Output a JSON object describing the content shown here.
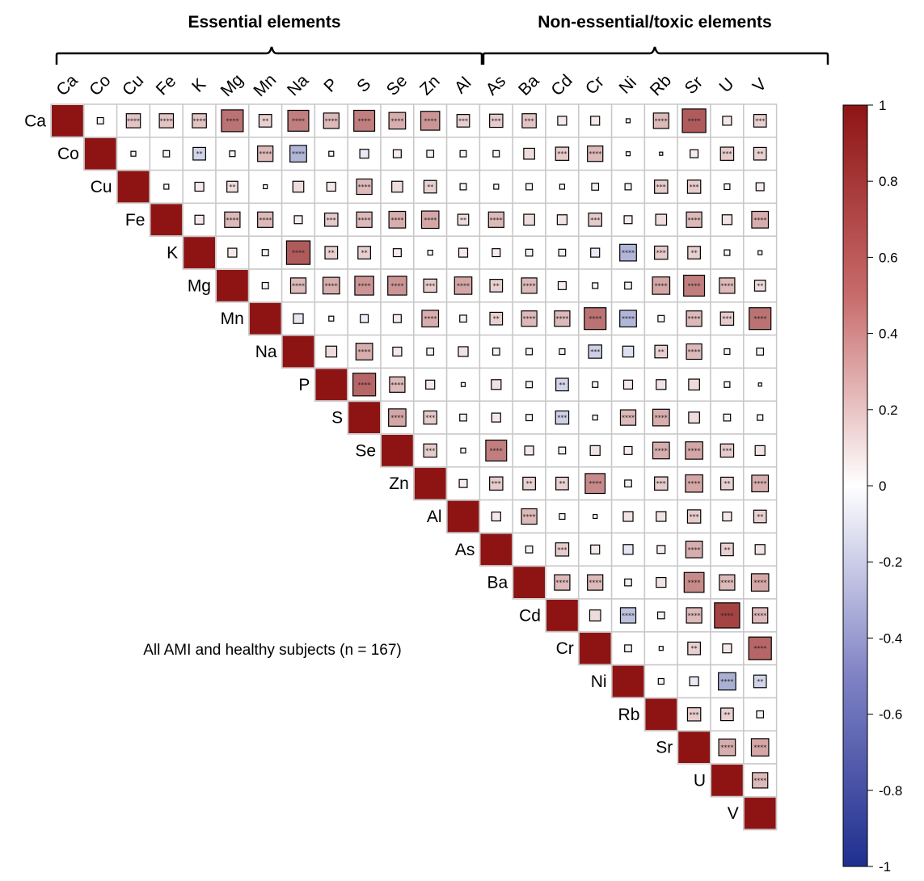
{
  "chart_data": {
    "type": "heatmap",
    "layout": "upper-triangle correlation matrix",
    "groups": [
      {
        "label": "Essential elements",
        "variables": [
          "Ca",
          "Co",
          "Cu",
          "Fe",
          "K",
          "Mg",
          "Mn",
          "Na",
          "P",
          "S",
          "Se",
          "Zn"
        ]
      },
      {
        "label": "Non-essential/toxic elements",
        "variables": [
          "Al",
          "As",
          "Ba",
          "Cd",
          "Cr",
          "Ni",
          "Rb",
          "Sr",
          "U",
          "V"
        ]
      }
    ],
    "variables": [
      "Ca",
      "Co",
      "Cu",
      "Fe",
      "K",
      "Mg",
      "Mn",
      "Na",
      "P",
      "S",
      "Se",
      "Zn",
      "Al",
      "As",
      "Ba",
      "Cd",
      "Cr",
      "Ni",
      "Rb",
      "Sr",
      "U",
      "V"
    ],
    "annotation": "All AMI and healthy subjects (n = 167)",
    "colorbar": {
      "range": [
        -1,
        1
      ],
      "ticks": [
        "1",
        "0.8",
        "0.6",
        "0.4",
        "0.2",
        "0",
        "-0.2",
        "-0.4",
        "-0.6",
        "-0.8",
        "-1"
      ],
      "colors": {
        "negative": "#1f2f8f",
        "zero": "#ffffff",
        "positive": "#8e1414"
      }
    },
    "cells": [
      [
        "Ca",
        "Co",
        0.05,
        ""
      ],
      [
        "Ca",
        "Cu",
        0.25,
        "****"
      ],
      [
        "Ca",
        "Fe",
        0.25,
        "****"
      ],
      [
        "Ca",
        "K",
        0.25,
        "****"
      ],
      [
        "Ca",
        "Mg",
        0.6,
        "****"
      ],
      [
        "Ca",
        "Mn",
        0.2,
        "**"
      ],
      [
        "Ca",
        "Na",
        0.55,
        "****"
      ],
      [
        "Ca",
        "P",
        0.3,
        "****"
      ],
      [
        "Ca",
        "S",
        0.55,
        "****"
      ],
      [
        "Ca",
        "Se",
        0.35,
        "****"
      ],
      [
        "Ca",
        "Zn",
        0.45,
        "****"
      ],
      [
        "Ca",
        "Al",
        0.2,
        "***"
      ],
      [
        "Ca",
        "As",
        0.22,
        "***"
      ],
      [
        "Ca",
        "Ba",
        0.25,
        "***"
      ],
      [
        "Ca",
        "Cd",
        0.1,
        ""
      ],
      [
        "Ca",
        "Cr",
        0.1,
        ""
      ],
      [
        "Ca",
        "Ni",
        0.02,
        ""
      ],
      [
        "Ca",
        "Rb",
        0.3,
        "****"
      ],
      [
        "Ca",
        "Sr",
        0.7,
        "****"
      ],
      [
        "Ca",
        "U",
        0.1,
        ""
      ],
      [
        "Ca",
        "V",
        0.2,
        "***"
      ],
      [
        "Co",
        "Cu",
        0.03,
        ""
      ],
      [
        "Co",
        "Fe",
        0.05,
        ""
      ],
      [
        "Co",
        "K",
        -0.2,
        "**"
      ],
      [
        "Co",
        "Mg",
        0.04,
        ""
      ],
      [
        "Co",
        "Mn",
        0.3,
        "****"
      ],
      [
        "Co",
        "Na",
        -0.35,
        "****"
      ],
      [
        "Co",
        "P",
        0.03,
        ""
      ],
      [
        "Co",
        "S",
        -0.1,
        ""
      ],
      [
        "Co",
        "Se",
        0.08,
        ""
      ],
      [
        "Co",
        "Zn",
        0.06,
        ""
      ],
      [
        "Co",
        "Al",
        0.05,
        ""
      ],
      [
        "Co",
        "As",
        0.05,
        ""
      ],
      [
        "Co",
        "Ba",
        0.15,
        ""
      ],
      [
        "Co",
        "Cd",
        0.22,
        "***"
      ],
      [
        "Co",
        "Cr",
        0.3,
        "****"
      ],
      [
        "Co",
        "Ni",
        0.02,
        ""
      ],
      [
        "Co",
        "Rb",
        0.01,
        ""
      ],
      [
        "Co",
        "Sr",
        0.08,
        ""
      ],
      [
        "Co",
        "U",
        0.22,
        "***"
      ],
      [
        "Co",
        "V",
        0.2,
        "**"
      ],
      [
        "Cu",
        "Fe",
        0.03,
        ""
      ],
      [
        "Cu",
        "K",
        0.1,
        ""
      ],
      [
        "Cu",
        "Mg",
        0.15,
        "**"
      ],
      [
        "Cu",
        "Mn",
        0.02,
        ""
      ],
      [
        "Cu",
        "Na",
        0.15,
        ""
      ],
      [
        "Cu",
        "P",
        0.1,
        ""
      ],
      [
        "Cu",
        "S",
        0.3,
        "****"
      ],
      [
        "Cu",
        "Se",
        0.15,
        ""
      ],
      [
        "Cu",
        "Zn",
        0.2,
        "**"
      ],
      [
        "Cu",
        "Al",
        0.05,
        ""
      ],
      [
        "Cu",
        "As",
        0.03,
        ""
      ],
      [
        "Cu",
        "Ba",
        0.05,
        ""
      ],
      [
        "Cu",
        "Cd",
        0.03,
        ""
      ],
      [
        "Cu",
        "Cr",
        0.06,
        ""
      ],
      [
        "Cu",
        "Ni",
        0.05,
        ""
      ],
      [
        "Cu",
        "Rb",
        0.22,
        "***"
      ],
      [
        "Cu",
        "Sr",
        0.22,
        "***"
      ],
      [
        "Cu",
        "U",
        0.04,
        ""
      ],
      [
        "Cu",
        "V",
        0.08,
        ""
      ],
      [
        "Fe",
        "K",
        0.1,
        ""
      ],
      [
        "Fe",
        "Mg",
        0.3,
        "****"
      ],
      [
        "Fe",
        "Mn",
        0.3,
        "****"
      ],
      [
        "Fe",
        "Na",
        0.08,
        ""
      ],
      [
        "Fe",
        "P",
        0.22,
        "***"
      ],
      [
        "Fe",
        "S",
        0.3,
        "****"
      ],
      [
        "Fe",
        "Se",
        0.35,
        "****"
      ],
      [
        "Fe",
        "Zn",
        0.38,
        "****"
      ],
      [
        "Fe",
        "Al",
        0.15,
        "**"
      ],
      [
        "Fe",
        "As",
        0.3,
        "****"
      ],
      [
        "Fe",
        "Ba",
        0.15,
        ""
      ],
      [
        "Fe",
        "Cd",
        0.12,
        ""
      ],
      [
        "Fe",
        "Cr",
        0.22,
        "***"
      ],
      [
        "Fe",
        "Ni",
        0.08,
        ""
      ],
      [
        "Fe",
        "Rb",
        0.15,
        ""
      ],
      [
        "Fe",
        "Sr",
        0.3,
        "****"
      ],
      [
        "Fe",
        "U",
        0.12,
        ""
      ],
      [
        "Fe",
        "V",
        0.35,
        "****"
      ],
      [
        "K",
        "Mg",
        0.1,
        ""
      ],
      [
        "K",
        "Mn",
        0.05,
        ""
      ],
      [
        "K",
        "Na",
        0.7,
        "****"
      ],
      [
        "K",
        "P",
        0.2,
        "**"
      ],
      [
        "K",
        "S",
        0.2,
        "**"
      ],
      [
        "K",
        "Se",
        0.08,
        ""
      ],
      [
        "K",
        "Zn",
        0.03,
        ""
      ],
      [
        "K",
        "Al",
        0.1,
        ""
      ],
      [
        "K",
        "As",
        0.08,
        ""
      ],
      [
        "K",
        "Ba",
        0.06,
        ""
      ],
      [
        "K",
        "Cd",
        0.06,
        ""
      ],
      [
        "K",
        "Cr",
        -0.1,
        ""
      ],
      [
        "K",
        "Ni",
        -0.35,
        "****"
      ],
      [
        "K",
        "Rb",
        0.22,
        "***"
      ],
      [
        "K",
        "Sr",
        0.2,
        "**"
      ],
      [
        "K",
        "U",
        0.04,
        ""
      ],
      [
        "K",
        "V",
        0.02,
        ""
      ],
      [
        "Mg",
        "Mn",
        0.05,
        ""
      ],
      [
        "Mg",
        "Na",
        0.3,
        "****"
      ],
      [
        "Mg",
        "P",
        0.35,
        "****"
      ],
      [
        "Mg",
        "S",
        0.45,
        "****"
      ],
      [
        "Mg",
        "Se",
        0.45,
        "****"
      ],
      [
        "Mg",
        "Zn",
        0.22,
        "***"
      ],
      [
        "Mg",
        "Al",
        0.38,
        "****"
      ],
      [
        "Mg",
        "As",
        0.2,
        "**"
      ],
      [
        "Mg",
        "Ba",
        0.3,
        "****"
      ],
      [
        "Mg",
        "Cd",
        0.08,
        ""
      ],
      [
        "Mg",
        "Cr",
        0.04,
        ""
      ],
      [
        "Mg",
        "Ni",
        0.06,
        ""
      ],
      [
        "Mg",
        "Rb",
        0.38,
        "****"
      ],
      [
        "Mg",
        "Sr",
        0.55,
        "****"
      ],
      [
        "Mg",
        "U",
        0.3,
        "****"
      ],
      [
        "Mg",
        "V",
        0.15,
        "**"
      ],
      [
        "Mn",
        "Na",
        -0.12,
        ""
      ],
      [
        "Mn",
        "P",
        0.03,
        ""
      ],
      [
        "Mn",
        "S",
        -0.08,
        ""
      ],
      [
        "Mn",
        "Se",
        0.08,
        ""
      ],
      [
        "Mn",
        "Zn",
        0.35,
        "****"
      ],
      [
        "Mn",
        "Al",
        0.06,
        ""
      ],
      [
        "Mn",
        "As",
        0.2,
        "**"
      ],
      [
        "Mn",
        "Ba",
        0.3,
        "****"
      ],
      [
        "Mn",
        "Cd",
        0.3,
        "****"
      ],
      [
        "Mn",
        "Cr",
        0.6,
        "****"
      ],
      [
        "Mn",
        "Ni",
        -0.35,
        "****"
      ],
      [
        "Mn",
        "Rb",
        0.05,
        ""
      ],
      [
        "Mn",
        "Sr",
        0.3,
        "****"
      ],
      [
        "Mn",
        "U",
        0.22,
        "***"
      ],
      [
        "Mn",
        "V",
        0.6,
        "****"
      ],
      [
        "Na",
        "P",
        0.15,
        ""
      ],
      [
        "Na",
        "S",
        0.35,
        "****"
      ],
      [
        "Na",
        "Se",
        0.1,
        ""
      ],
      [
        "Na",
        "Zn",
        0.06,
        ""
      ],
      [
        "Na",
        "Al",
        0.12,
        ""
      ],
      [
        "Na",
        "As",
        0.06,
        ""
      ],
      [
        "Na",
        "Ba",
        0.05,
        ""
      ],
      [
        "Na",
        "Cd",
        0.04,
        ""
      ],
      [
        "Na",
        "Cr",
        -0.22,
        "***"
      ],
      [
        "Na",
        "Ni",
        -0.15,
        ""
      ],
      [
        "Na",
        "Rb",
        0.2,
        "**"
      ],
      [
        "Na",
        "Sr",
        0.3,
        "****"
      ],
      [
        "Na",
        "U",
        0.04,
        ""
      ],
      [
        "Na",
        "V",
        0.06,
        ""
      ],
      [
        "P",
        "S",
        0.65,
        "****"
      ],
      [
        "P",
        "Se",
        0.3,
        "****"
      ],
      [
        "P",
        "Zn",
        0.1,
        ""
      ],
      [
        "P",
        "Al",
        0.02,
        ""
      ],
      [
        "P",
        "As",
        0.12,
        ""
      ],
      [
        "P",
        "Ba",
        0.05,
        ""
      ],
      [
        "P",
        "Cd",
        -0.2,
        "**"
      ],
      [
        "P",
        "Cr",
        0.04,
        ""
      ],
      [
        "P",
        "Ni",
        0.1,
        ""
      ],
      [
        "P",
        "Rb",
        0.12,
        ""
      ],
      [
        "P",
        "Sr",
        0.15,
        ""
      ],
      [
        "P",
        "U",
        0.04,
        ""
      ],
      [
        "P",
        "V",
        0.01,
        ""
      ],
      [
        "S",
        "Se",
        0.38,
        "****"
      ],
      [
        "S",
        "Zn",
        0.22,
        "***"
      ],
      [
        "S",
        "Al",
        0.06,
        ""
      ],
      [
        "S",
        "As",
        0.1,
        ""
      ],
      [
        "S",
        "Ba",
        0.05,
        ""
      ],
      [
        "S",
        "Cd",
        -0.22,
        "***"
      ],
      [
        "S",
        "Cr",
        0.03,
        ""
      ],
      [
        "S",
        "Ni",
        0.3,
        "****"
      ],
      [
        "S",
        "Rb",
        0.35,
        "****"
      ],
      [
        "S",
        "Sr",
        0.15,
        ""
      ],
      [
        "S",
        "U",
        0.06,
        ""
      ],
      [
        "S",
        "V",
        0.04,
        ""
      ],
      [
        "Se",
        "Zn",
        0.22,
        "***"
      ],
      [
        "Se",
        "Al",
        0.03,
        ""
      ],
      [
        "Se",
        "As",
        0.55,
        "****"
      ],
      [
        "Se",
        "Ba",
        0.1,
        ""
      ],
      [
        "Se",
        "Cd",
        0.06,
        ""
      ],
      [
        "Se",
        "Cr",
        0.12,
        ""
      ],
      [
        "Se",
        "Ni",
        0.08,
        ""
      ],
      [
        "Se",
        "Rb",
        0.35,
        "****"
      ],
      [
        "Se",
        "Sr",
        0.38,
        "****"
      ],
      [
        "Se",
        "U",
        0.22,
        "***"
      ],
      [
        "Se",
        "V",
        0.12,
        ""
      ],
      [
        "Zn",
        "Al",
        0.08,
        ""
      ],
      [
        "Zn",
        "As",
        0.22,
        "***"
      ],
      [
        "Zn",
        "Ba",
        0.2,
        "**"
      ],
      [
        "Zn",
        "Cd",
        0.2,
        "**"
      ],
      [
        "Zn",
        "Cr",
        0.5,
        "****"
      ],
      [
        "Zn",
        "Ni",
        0.06,
        ""
      ],
      [
        "Zn",
        "Rb",
        0.22,
        "***"
      ],
      [
        "Zn",
        "Sr",
        0.38,
        "****"
      ],
      [
        "Zn",
        "U",
        0.2,
        "**"
      ],
      [
        "Zn",
        "V",
        0.35,
        "****"
      ],
      [
        "Al",
        "As",
        0.1,
        ""
      ],
      [
        "Al",
        "Ba",
        0.3,
        "****"
      ],
      [
        "Al",
        "Cd",
        0.04,
        ""
      ],
      [
        "Al",
        "Cr",
        0.02,
        ""
      ],
      [
        "Al",
        "Ni",
        0.12,
        ""
      ],
      [
        "Al",
        "Rb",
        0.12,
        ""
      ],
      [
        "Al",
        "Sr",
        0.22,
        "***"
      ],
      [
        "Al",
        "U",
        0.1,
        ""
      ],
      [
        "Al",
        "V",
        0.2,
        "**"
      ],
      [
        "As",
        "Ba",
        0.06,
        ""
      ],
      [
        "As",
        "Cd",
        0.22,
        "***"
      ],
      [
        "As",
        "Cr",
        0.1,
        ""
      ],
      [
        "As",
        "Ni",
        -0.12,
        ""
      ],
      [
        "As",
        "Rb",
        0.08,
        ""
      ],
      [
        "As",
        "Sr",
        0.35,
        "****"
      ],
      [
        "As",
        "U",
        0.2,
        "**"
      ],
      [
        "As",
        "V",
        0.12,
        ""
      ],
      [
        "Ba",
        "Cd",
        0.3,
        "****"
      ],
      [
        "Ba",
        "Cr",
        0.3,
        "****"
      ],
      [
        "Ba",
        "Ni",
        0.06,
        ""
      ],
      [
        "Ba",
        "Rb",
        0.12,
        ""
      ],
      [
        "Ba",
        "Sr",
        0.5,
        "****"
      ],
      [
        "Ba",
        "U",
        0.3,
        "****"
      ],
      [
        "Ba",
        "V",
        0.38,
        "****"
      ],
      [
        "Cd",
        "Cr",
        0.15,
        ""
      ],
      [
        "Cd",
        "Ni",
        -0.3,
        "****"
      ],
      [
        "Cd",
        "Rb",
        0.06,
        ""
      ],
      [
        "Cd",
        "Sr",
        0.3,
        "****"
      ],
      [
        "Cd",
        "U",
        0.8,
        "****"
      ],
      [
        "Cd",
        "V",
        0.3,
        "****"
      ],
      [
        "Cr",
        "Ni",
        0.06,
        ""
      ],
      [
        "Cr",
        "Rb",
        0.02,
        ""
      ],
      [
        "Cr",
        "Sr",
        0.2,
        "**"
      ],
      [
        "Cr",
        "U",
        0.1,
        ""
      ],
      [
        "Cr",
        "V",
        0.65,
        "****"
      ],
      [
        "Ni",
        "Rb",
        0.04,
        ""
      ],
      [
        "Ni",
        "Sr",
        -0.1,
        ""
      ],
      [
        "Ni",
        "U",
        -0.38,
        "****"
      ],
      [
        "Ni",
        "V",
        -0.2,
        "**"
      ],
      [
        "Rb",
        "Sr",
        0.22,
        "***"
      ],
      [
        "Rb",
        "U",
        0.2,
        "**"
      ],
      [
        "Rb",
        "V",
        0.06,
        ""
      ],
      [
        "Sr",
        "U",
        0.35,
        "****"
      ],
      [
        "Sr",
        "V",
        0.38,
        "****"
      ],
      [
        "U",
        "V",
        0.3,
        "****"
      ]
    ]
  }
}
